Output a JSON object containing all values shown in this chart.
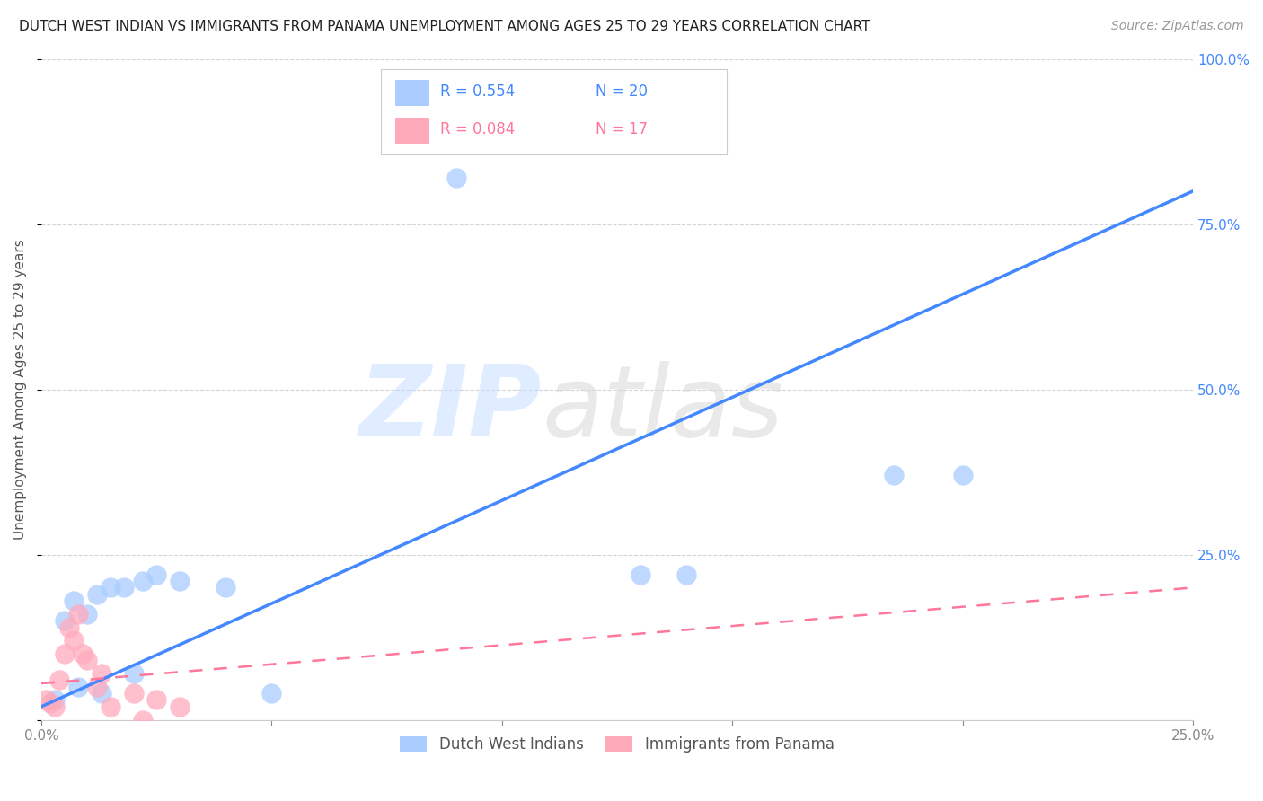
{
  "title": "DUTCH WEST INDIAN VS IMMIGRANTS FROM PANAMA UNEMPLOYMENT AMONG AGES 25 TO 29 YEARS CORRELATION CHART",
  "source": "Source: ZipAtlas.com",
  "ylabel": "Unemployment Among Ages 25 to 29 years",
  "xlim": [
    0.0,
    0.25
  ],
  "ylim": [
    0.0,
    1.0
  ],
  "xticks": [
    0.0,
    0.05,
    0.1,
    0.15,
    0.2,
    0.25
  ],
  "yticks": [
    0.0,
    0.25,
    0.5,
    0.75,
    1.0
  ],
  "blue_R": 0.554,
  "blue_N": 20,
  "pink_R": 0.084,
  "pink_N": 17,
  "blue_legend": "Dutch West Indians",
  "pink_legend": "Immigrants from Panama",
  "background_color": "#ffffff",
  "grid_color": "#d0d0d0",
  "blue_color": "#aaccff",
  "blue_line_color": "#4488ff",
  "pink_color": "#ffaabb",
  "pink_line_color": "#ff7799",
  "blue_points_x": [
    0.003,
    0.005,
    0.007,
    0.008,
    0.01,
    0.012,
    0.013,
    0.015,
    0.018,
    0.02,
    0.022,
    0.025,
    0.03,
    0.04,
    0.05,
    0.09,
    0.13,
    0.14,
    0.185,
    0.2
  ],
  "blue_points_y": [
    0.03,
    0.15,
    0.18,
    0.05,
    0.16,
    0.19,
    0.04,
    0.2,
    0.2,
    0.07,
    0.21,
    0.22,
    0.21,
    0.2,
    0.04,
    0.82,
    0.22,
    0.22,
    0.37,
    0.37
  ],
  "pink_points_x": [
    0.001,
    0.002,
    0.003,
    0.004,
    0.005,
    0.006,
    0.007,
    0.008,
    0.009,
    0.01,
    0.012,
    0.013,
    0.015,
    0.02,
    0.022,
    0.025,
    0.03
  ],
  "pink_points_y": [
    0.03,
    0.025,
    0.02,
    0.06,
    0.1,
    0.14,
    0.12,
    0.16,
    0.1,
    0.09,
    0.05,
    0.07,
    0.02,
    0.04,
    0.0,
    0.03,
    0.02
  ],
  "blue_line_x0": 0.0,
  "blue_line_y0": 0.02,
  "blue_line_x1": 0.25,
  "blue_line_y1": 0.8,
  "pink_line_x0": 0.0,
  "pink_line_y0": 0.055,
  "pink_line_x1": 0.25,
  "pink_line_y1": 0.2
}
